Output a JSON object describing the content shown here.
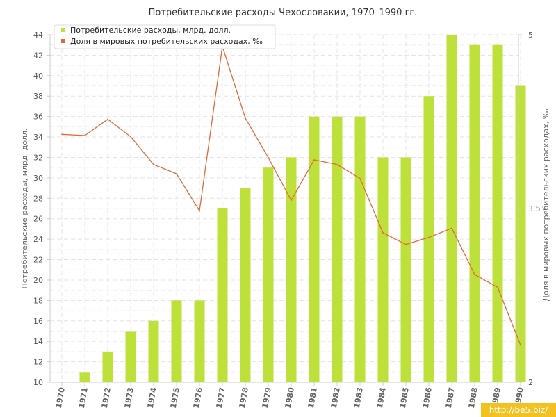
{
  "chart_data": {
    "type": "bar",
    "title": "Потребительские расходы Чехословакии, 1970–1990 гг.",
    "ylabel": "Потребительские расходы, млрд. долл.",
    "y2label": "Доля в мировых потребительских расходах, ‰",
    "categories": [
      "1970",
      "1971",
      "1972",
      "1973",
      "1974",
      "1975",
      "1976",
      "1977",
      "1978",
      "1979",
      "1980",
      "1981",
      "1982",
      "1983",
      "1984",
      "1985",
      "1986",
      "1987",
      "1988",
      "1989",
      "1990"
    ],
    "ylim": [
      10,
      44
    ],
    "y2lim": [
      2,
      5
    ],
    "yticks": [
      "10",
      "12",
      "14",
      "16",
      "18",
      "20",
      "22",
      "24",
      "26",
      "28",
      "30",
      "32",
      "34",
      "36",
      "38",
      "40",
      "42",
      "44"
    ],
    "y2ticks": [
      "2",
      "3.5",
      "5"
    ],
    "grid": true,
    "legend_position": "top-left",
    "series": [
      {
        "name": "Потребительские расходы, млрд. долл.",
        "type": "bar",
        "axis": "left",
        "color": "#bde03a",
        "values": [
          10,
          11,
          13,
          15,
          16,
          18,
          18,
          27,
          29,
          31,
          32,
          36,
          36,
          36,
          32,
          32,
          38,
          44,
          43,
          43,
          39
        ]
      },
      {
        "name": "Доля в мировых потребительских расходах, ‰",
        "type": "line",
        "axis": "right",
        "color": "#e06a3a",
        "values": [
          4.14,
          4.13,
          4.27,
          4.12,
          3.88,
          3.8,
          3.48,
          4.9,
          4.28,
          3.94,
          3.57,
          3.92,
          3.88,
          3.76,
          3.29,
          3.19,
          3.25,
          3.33,
          2.93,
          2.82,
          2.32
        ]
      }
    ]
  },
  "watermark": "http://be5.biz/"
}
